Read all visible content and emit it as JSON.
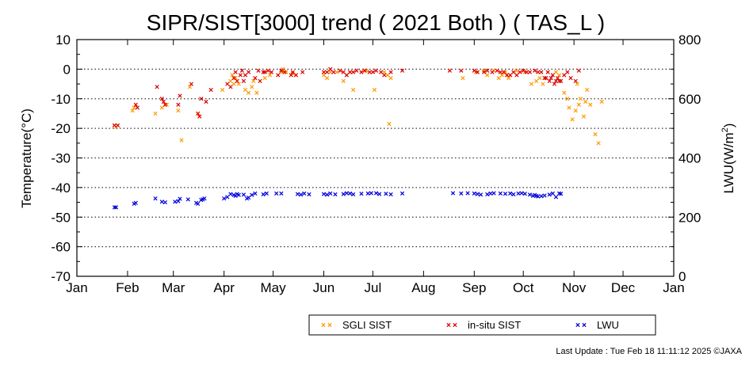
{
  "chart_data": {
    "type": "scatter",
    "title": "SIPR/SIST[3000] trend ( 2021 Both ) ( TAS_L )",
    "ylabel": "Temperature(°C)",
    "y2label_main": "LWU(W/m",
    "y2label_sup": "2",
    "y2label_end": ")",
    "ylim": [
      -70,
      10
    ],
    "y2lim": [
      0,
      800
    ],
    "x_unit": "day-of-year",
    "xlim": [
      1,
      366
    ],
    "yticks": [
      "10",
      "0",
      "-10",
      "-20",
      "-30",
      "-40",
      "-50",
      "-60",
      "-70"
    ],
    "y2ticks": [
      "800",
      "600",
      "400",
      "200",
      "0"
    ],
    "xticks": [
      "Jan",
      "Feb",
      "Mar",
      "Apr",
      "May",
      "Jun",
      "Jul",
      "Aug",
      "Sep",
      "Oct",
      "Nov",
      "Dec",
      "Jan"
    ],
    "grid": "dotted horizontal at every 10°C",
    "legend_placement": "bottom-center",
    "series": [
      {
        "name": "SGLI SIST",
        "axis": "left",
        "color": "#ff9900",
        "points": [
          [
            24,
            -19
          ],
          [
            25,
            -19.5
          ],
          [
            35,
            -14
          ],
          [
            36,
            -13
          ],
          [
            49,
            -15
          ],
          [
            53,
            -13
          ],
          [
            56,
            -12
          ],
          [
            63,
            -14
          ],
          [
            65,
            -24
          ],
          [
            70,
            -6
          ],
          [
            75,
            -15
          ],
          [
            76,
            -16
          ],
          [
            90,
            -7
          ],
          [
            95,
            -4
          ],
          [
            96,
            -2
          ],
          [
            97,
            -5
          ],
          [
            98,
            -3
          ],
          [
            100,
            -5
          ],
          [
            104,
            -7
          ],
          [
            106,
            -8
          ],
          [
            108,
            -6
          ],
          [
            109,
            -4
          ],
          [
            111,
            -8
          ],
          [
            116,
            -3
          ],
          [
            119,
            -2
          ],
          [
            126,
            -1
          ],
          [
            127,
            0
          ],
          [
            129,
            -1
          ],
          [
            133,
            -1.5
          ],
          [
            135,
            -2
          ],
          [
            152,
            -2
          ],
          [
            154,
            -3
          ],
          [
            156,
            -1
          ],
          [
            160,
            -1
          ],
          [
            164,
            -4
          ],
          [
            166,
            -2
          ],
          [
            168,
            -1
          ],
          [
            170,
            -7
          ],
          [
            175,
            -1
          ],
          [
            178,
            -0.5
          ],
          [
            183,
            -7
          ],
          [
            189,
            -1
          ],
          [
            191,
            -2
          ],
          [
            192,
            -18.5
          ],
          [
            193,
            -3
          ],
          [
            237,
            -3
          ],
          [
            245,
            -1
          ],
          [
            250,
            -0.5
          ],
          [
            252,
            -2
          ],
          [
            256,
            -0.5
          ],
          [
            259,
            -3
          ],
          [
            261,
            -2
          ],
          [
            263,
            -1
          ],
          [
            265,
            -3
          ],
          [
            270,
            -0.5
          ],
          [
            275,
            -1
          ],
          [
            279,
            -5
          ],
          [
            282,
            -4
          ],
          [
            284,
            -3
          ],
          [
            286,
            -5
          ],
          [
            294,
            -1
          ],
          [
            296,
            -2
          ],
          [
            299,
            -8
          ],
          [
            301,
            -10
          ],
          [
            302,
            -13
          ],
          [
            304,
            -17
          ],
          [
            306,
            -14
          ],
          [
            307,
            -5
          ],
          [
            308,
            -12
          ],
          [
            309,
            -10
          ],
          [
            311,
            -16
          ],
          [
            312,
            -11
          ],
          [
            313,
            -7
          ],
          [
            315,
            -12
          ],
          [
            318,
            -22
          ],
          [
            320,
            -25
          ],
          [
            322,
            -11
          ]
        ]
      },
      {
        "name": "in-situ SIST",
        "axis": "left",
        "color": "#dd0000",
        "points": [
          [
            24,
            -19
          ],
          [
            26,
            -19
          ],
          [
            37,
            -12
          ],
          [
            38,
            -13
          ],
          [
            50,
            -6
          ],
          [
            53,
            -10
          ],
          [
            54,
            -11
          ],
          [
            55,
            -12
          ],
          [
            63,
            -12
          ],
          [
            64,
            -9
          ],
          [
            71,
            -5
          ],
          [
            75,
            -15
          ],
          [
            76,
            -16
          ],
          [
            77,
            -10
          ],
          [
            80,
            -11
          ],
          [
            83,
            -7
          ],
          [
            93,
            -5
          ],
          [
            95,
            -6
          ],
          [
            97,
            -3
          ],
          [
            98,
            -1
          ],
          [
            99,
            -4
          ],
          [
            101,
            -2
          ],
          [
            102,
            -0.5
          ],
          [
            103,
            -4
          ],
          [
            104,
            -2
          ],
          [
            106,
            -1
          ],
          [
            110,
            -3
          ],
          [
            112,
            -0.5
          ],
          [
            113,
            -4
          ],
          [
            115,
            -1
          ],
          [
            116,
            -1
          ],
          [
            118,
            -0.5
          ],
          [
            120,
            -1
          ],
          [
            124,
            -2
          ],
          [
            126,
            -0.5
          ],
          [
            128,
            -1
          ],
          [
            132,
            -2
          ],
          [
            133,
            -1
          ],
          [
            135,
            -2
          ],
          [
            139,
            -1
          ],
          [
            152,
            -1
          ],
          [
            154,
            -1
          ],
          [
            156,
            0
          ],
          [
            158,
            -1
          ],
          [
            162,
            -0.5
          ],
          [
            164,
            -1
          ],
          [
            166,
            -2
          ],
          [
            168,
            -1
          ],
          [
            170,
            -1
          ],
          [
            172,
            -0.5
          ],
          [
            175,
            -1
          ],
          [
            177,
            -0.5
          ],
          [
            180,
            -1
          ],
          [
            182,
            -1
          ],
          [
            184,
            -0.5
          ],
          [
            187,
            -1
          ],
          [
            189,
            -2
          ],
          [
            193,
            -1
          ],
          [
            200,
            -0.5
          ],
          [
            229,
            -0.5
          ],
          [
            236,
            -0.5
          ],
          [
            244,
            -0.5
          ],
          [
            246,
            -1
          ],
          [
            250,
            -1
          ],
          [
            252,
            -0.5
          ],
          [
            255,
            -1
          ],
          [
            258,
            -0.5
          ],
          [
            260,
            -1
          ],
          [
            262,
            -1
          ],
          [
            264,
            -2
          ],
          [
            266,
            -2
          ],
          [
            268,
            -1
          ],
          [
            270,
            -2
          ],
          [
            272,
            -1
          ],
          [
            274,
            -0.5
          ],
          [
            276,
            -1
          ],
          [
            278,
            -1
          ],
          [
            281,
            -0.5
          ],
          [
            283,
            -1
          ],
          [
            285,
            -1
          ],
          [
            287,
            -3
          ],
          [
            288,
            -3
          ],
          [
            289,
            -1
          ],
          [
            290,
            -4
          ],
          [
            291,
            -3
          ],
          [
            292,
            -2
          ],
          [
            293,
            -5
          ],
          [
            294,
            -4
          ],
          [
            295,
            -3
          ],
          [
            296,
            -4
          ],
          [
            297,
            -4
          ],
          [
            299,
            -2
          ],
          [
            301,
            -1
          ],
          [
            303,
            -3
          ],
          [
            306,
            -4
          ],
          [
            308,
            -0.5
          ]
        ]
      },
      {
        "name": "LWU",
        "axis": "right",
        "color": "#0000dd",
        "points": [
          [
            24,
            233
          ],
          [
            25,
            233
          ],
          [
            36,
            245
          ],
          [
            37,
            248
          ],
          [
            49,
            263
          ],
          [
            53,
            252
          ],
          [
            55,
            250
          ],
          [
            61,
            252
          ],
          [
            63,
            254
          ],
          [
            64,
            262
          ],
          [
            69,
            260
          ],
          [
            74,
            248
          ],
          [
            75,
            245
          ],
          [
            77,
            258
          ],
          [
            78,
            260
          ],
          [
            79,
            263
          ],
          [
            91,
            263
          ],
          [
            93,
            268
          ],
          [
            95,
            278
          ],
          [
            97,
            275
          ],
          [
            98,
            272
          ],
          [
            99,
            278
          ],
          [
            100,
            275
          ],
          [
            103,
            276
          ],
          [
            105,
            263
          ],
          [
            106,
            266
          ],
          [
            108,
            275
          ],
          [
            110,
            280
          ],
          [
            115,
            277
          ],
          [
            117,
            280
          ],
          [
            123,
            280
          ],
          [
            126,
            280
          ],
          [
            136,
            278
          ],
          [
            138,
            276
          ],
          [
            140,
            280
          ],
          [
            143,
            277
          ],
          [
            152,
            278
          ],
          [
            154,
            276
          ],
          [
            156,
            280
          ],
          [
            159,
            277
          ],
          [
            164,
            278
          ],
          [
            166,
            281
          ],
          [
            168,
            280
          ],
          [
            170,
            277
          ],
          [
            175,
            279
          ],
          [
            179,
            280
          ],
          [
            181,
            281
          ],
          [
            184,
            281
          ],
          [
            186,
            278
          ],
          [
            190,
            279
          ],
          [
            193,
            277
          ],
          [
            200,
            280
          ],
          [
            231,
            281
          ],
          [
            236,
            280
          ],
          [
            240,
            281
          ],
          [
            244,
            280
          ],
          [
            246,
            278
          ],
          [
            248,
            276
          ],
          [
            252,
            277
          ],
          [
            254,
            280
          ],
          [
            256,
            281
          ],
          [
            260,
            280
          ],
          [
            263,
            279
          ],
          [
            266,
            280
          ],
          [
            268,
            277
          ],
          [
            271,
            280
          ],
          [
            273,
            281
          ],
          [
            275,
            279
          ],
          [
            278,
            276
          ],
          [
            280,
            272
          ],
          [
            281,
            275
          ],
          [
            282,
            272
          ],
          [
            283,
            270
          ],
          [
            285,
            271
          ],
          [
            287,
            273
          ],
          [
            290,
            276
          ],
          [
            292,
            280
          ],
          [
            294,
            268
          ],
          [
            296,
            280
          ],
          [
            297,
            279
          ]
        ]
      }
    ]
  },
  "legend": [
    "SGLI SIST",
    "in-situ SIST",
    "LWU"
  ],
  "footer": "Last Update : Tue Feb 18 11:11:12 2025  ©JAXA"
}
